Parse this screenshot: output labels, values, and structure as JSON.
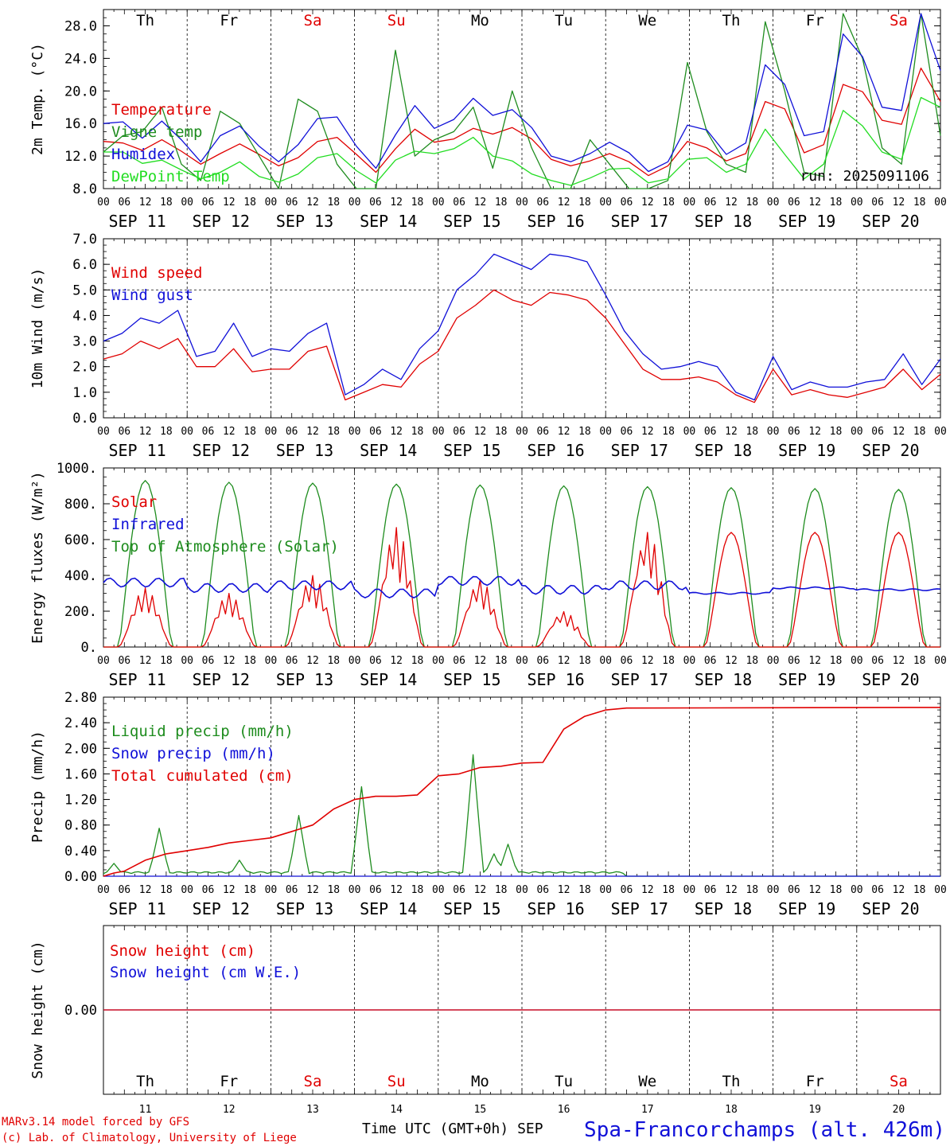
{
  "meta": {
    "days": [
      "Th",
      "Fr",
      "Sa",
      "Su",
      "Mo",
      "Tu",
      "We",
      "Th",
      "Fr",
      "Sa"
    ],
    "weekend_days": [
      2,
      3,
      9
    ],
    "dates": [
      "SEP 11",
      "SEP 12",
      "SEP 13",
      "SEP 14",
      "SEP 15",
      "SEP 16",
      "SEP 17",
      "SEP 18",
      "SEP 19",
      "SEP 20"
    ],
    "hour_ticks": [
      "00",
      "06",
      "12",
      "18"
    ],
    "end_tick": "00",
    "day_numbers": [
      "11",
      "12",
      "13",
      "14",
      "15",
      "16",
      "17",
      "18",
      "19",
      "20"
    ],
    "run_label": "run: 2025091106",
    "xlabel": "Time UTC (GMT+0h) SEP",
    "location": "Spa-Francorchamps (alt. 426m)",
    "credit_line1": "MARv3.14 model forced by GFS",
    "credit_line2": "(c) Lab. of Climatology, University of Liege"
  },
  "colors": {
    "red": "#e00000",
    "green": "#1e8c1e",
    "blue": "#1010d8",
    "lightgreen": "#22dd22",
    "grid": "#000000"
  },
  "chart_data": [
    {
      "type": "line",
      "ylabel": "2m Temp. (°C)",
      "ylim": [
        8,
        30
      ],
      "yticks": [
        "8.0",
        "12.0",
        "16.0",
        "20.0",
        "24.0",
        "28.0"
      ],
      "ytick_values": [
        8,
        12,
        16,
        20,
        24,
        28
      ],
      "x_step_hours": 6,
      "series": [
        {
          "name": "Temperature",
          "color": "red",
          "values": [
            13.8,
            13.6,
            12.7,
            14.0,
            12.6,
            11.0,
            12.3,
            13.5,
            12.2,
            10.8,
            11.8,
            13.8,
            14.3,
            12.2,
            10.0,
            12.9,
            15.3,
            13.7,
            14.1,
            15.4,
            14.7,
            15.5,
            14.1,
            11.6,
            10.8,
            11.4,
            12.3,
            11.3,
            9.6,
            10.8,
            13.8,
            13.0,
            11.4,
            12.3,
            18.7,
            17.8,
            12.4,
            13.4,
            20.8,
            19.9,
            16.4,
            15.9,
            22.8,
            18.7
          ]
        },
        {
          "name": "Vigne temp",
          "color": "green",
          "values": [
            12.5,
            14.5,
            15.0,
            18.0,
            11.0,
            9.0,
            17.5,
            16.0,
            12.0,
            8.0,
            19.0,
            17.5,
            11.0,
            8.0,
            8.0,
            25.0,
            12.0,
            14.0,
            15.0,
            18.0,
            10.5,
            20.0,
            13.0,
            8.0,
            8.0,
            14.0,
            11.0,
            8.0,
            8.0,
            9.0,
            23.5,
            15.0,
            11.0,
            10.0,
            28.5,
            20.0,
            10.0,
            9.5,
            29.5,
            24.0,
            13.0,
            11.0,
            29.5,
            14.5
          ]
        },
        {
          "name": "Humidex",
          "color": "blue",
          "values": [
            16.0,
            16.2,
            14.2,
            16.3,
            14.0,
            11.3,
            14.5,
            15.7,
            13.2,
            11.3,
            13.4,
            16.6,
            16.8,
            13.2,
            10.5,
            14.6,
            18.2,
            15.4,
            16.5,
            19.1,
            17.0,
            17.7,
            15.5,
            12.0,
            11.3,
            12.3,
            13.7,
            12.4,
            10.1,
            11.3,
            15.8,
            15.2,
            12.2,
            13.6,
            23.2,
            20.8,
            14.5,
            15.0,
            27.0,
            24.2,
            18.0,
            17.6,
            29.5,
            22.5
          ]
        },
        {
          "name": "DewPoint Temp",
          "color": "lightgreen",
          "values": [
            12.5,
            12.5,
            11.1,
            11.5,
            10.3,
            9.2,
            10.0,
            11.3,
            9.5,
            8.8,
            9.8,
            11.8,
            12.3,
            10.2,
            8.7,
            11.5,
            12.6,
            12.3,
            12.9,
            14.3,
            12.0,
            11.4,
            9.8,
            9.0,
            8.4,
            9.3,
            10.4,
            10.5,
            8.7,
            9.2,
            11.6,
            11.8,
            10.0,
            11.0,
            15.3,
            12.2,
            9.2,
            11.0,
            17.6,
            15.7,
            12.5,
            11.6,
            19.2,
            18.0
          ]
        }
      ],
      "legend": [
        "Temperature",
        "Vigne temp",
        "Humidex",
        "DewPoint Temp"
      ]
    },
    {
      "type": "line",
      "ylabel": "10m Wind (m/s)",
      "ylim": [
        0,
        7
      ],
      "yticks": [
        "0.0",
        "1.0",
        "2.0",
        "3.0",
        "4.0",
        "5.0",
        "6.0",
        "7.0"
      ],
      "ytick_values": [
        0,
        1,
        2,
        3,
        4,
        5,
        6,
        7
      ],
      "ref_line": 5,
      "x_step_hours": 6,
      "series": [
        {
          "name": "Wind speed",
          "color": "red",
          "values": [
            2.3,
            2.5,
            3.0,
            2.7,
            3.1,
            2.0,
            2.0,
            2.7,
            1.8,
            1.9,
            1.9,
            2.6,
            2.8,
            0.7,
            1.0,
            1.3,
            1.2,
            2.1,
            2.6,
            3.9,
            4.4,
            5.0,
            4.6,
            4.4,
            4.9,
            4.8,
            4.6,
            3.9,
            2.9,
            1.9,
            1.5,
            1.5,
            1.6,
            1.4,
            0.9,
            0.6,
            1.9,
            0.9,
            1.1,
            0.9,
            0.8,
            1.0,
            1.2,
            1.9,
            1.1,
            1.7
          ]
        },
        {
          "name": "Wind gust",
          "color": "blue",
          "values": [
            3.0,
            3.3,
            3.9,
            3.7,
            4.2,
            2.4,
            2.6,
            3.7,
            2.4,
            2.7,
            2.6,
            3.3,
            3.7,
            0.9,
            1.3,
            1.9,
            1.5,
            2.7,
            3.4,
            5.0,
            5.6,
            6.4,
            6.1,
            5.8,
            6.4,
            6.3,
            6.1,
            4.8,
            3.4,
            2.5,
            1.9,
            2.0,
            2.2,
            2.0,
            1.0,
            0.7,
            2.4,
            1.1,
            1.4,
            1.2,
            1.2,
            1.4,
            1.5,
            2.5,
            1.3,
            2.3
          ]
        }
      ],
      "legend": [
        "Wind speed",
        "Wind gust"
      ]
    },
    {
      "type": "line",
      "ylabel": "Energy fluxes (W/m²)",
      "ylim": [
        0,
        1000
      ],
      "yticks": [
        "0.",
        "200.",
        "400.",
        "600.",
        "800.",
        "1000."
      ],
      "ytick_values": [
        0,
        200,
        400,
        600,
        800,
        1000
      ],
      "toa_peaks": [
        930,
        920,
        915,
        910,
        905,
        900,
        895,
        890,
        885,
        880
      ],
      "solar_peaks": [
        330,
        300,
        400,
        670,
        380,
        200,
        650,
        640,
        640,
        640
      ],
      "infrared_base": [
        360,
        330,
        345,
        300,
        370,
        320,
        345,
        300,
        330,
        320
      ],
      "series": [
        {
          "name": "Solar",
          "color": "red"
        },
        {
          "name": "Infrared",
          "color": "blue"
        },
        {
          "name": "Top of Atmosphere (Solar)",
          "color": "green"
        }
      ],
      "legend": [
        "Solar",
        "Infrared",
        "Top of Atmosphere (Solar)"
      ]
    },
    {
      "type": "line",
      "ylabel": "Precip (mm/h)",
      "ylim": [
        0,
        2.8
      ],
      "yticks": [
        "0.00",
        "0.40",
        "0.80",
        "1.20",
        "1.60",
        "2.00",
        "2.40",
        "2.80"
      ],
      "ytick_values": [
        0,
        0.4,
        0.8,
        1.2,
        1.6,
        2.0,
        2.4,
        2.8
      ],
      "liquid_spikes": [
        [
          3,
          0.2
        ],
        [
          16,
          0.75
        ],
        [
          39,
          0.25
        ],
        [
          56,
          0.95
        ],
        [
          74,
          1.4
        ],
        [
          106,
          1.9
        ],
        [
          112,
          0.35
        ],
        [
          116,
          0.5
        ]
      ],
      "cumulated_points": [
        [
          0,
          0
        ],
        [
          3,
          0.05
        ],
        [
          6,
          0.08
        ],
        [
          12,
          0.25
        ],
        [
          18,
          0.35
        ],
        [
          24,
          0.4
        ],
        [
          30,
          0.45
        ],
        [
          36,
          0.52
        ],
        [
          42,
          0.56
        ],
        [
          48,
          0.6
        ],
        [
          54,
          0.7
        ],
        [
          60,
          0.8
        ],
        [
          66,
          1.05
        ],
        [
          72,
          1.2
        ],
        [
          78,
          1.25
        ],
        [
          84,
          1.25
        ],
        [
          90,
          1.27
        ],
        [
          96,
          1.57
        ],
        [
          102,
          1.6
        ],
        [
          108,
          1.7
        ],
        [
          114,
          1.72
        ],
        [
          120,
          1.77
        ],
        [
          126,
          1.78
        ],
        [
          132,
          2.3
        ],
        [
          138,
          2.5
        ],
        [
          144,
          2.6
        ],
        [
          150,
          2.63
        ],
        [
          240,
          2.64
        ]
      ],
      "series": [
        {
          "name": "Liquid precip (mm/h)",
          "color": "green"
        },
        {
          "name": "Snow precip (mm/h)",
          "color": "blue"
        },
        {
          "name": "Total cumulated (cm)",
          "color": "red"
        }
      ],
      "legend": [
        "Liquid precip (mm/h)",
        "Snow precip (mm/h)",
        "Total cumulated (cm)"
      ]
    },
    {
      "type": "line",
      "ylabel": "Snow height (cm)",
      "ylim": [
        -1,
        1
      ],
      "yticks": [
        "0.00"
      ],
      "ytick_values": [
        0
      ],
      "series": [
        {
          "name": "Snow height (cm)",
          "color": "red",
          "values": [
            0,
            0
          ]
        },
        {
          "name": "Snow height (cm W.E.)",
          "color": "blue",
          "values": [
            0,
            0
          ]
        }
      ],
      "legend": [
        "Snow height (cm)",
        "Snow height (cm W.E.)"
      ]
    }
  ]
}
